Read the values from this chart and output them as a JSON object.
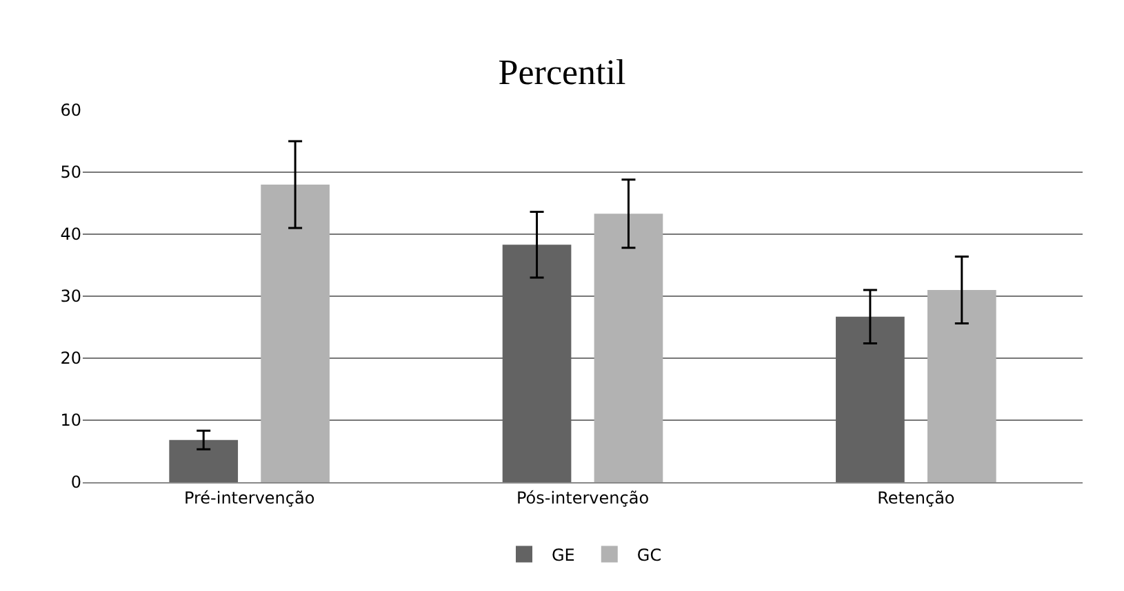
{
  "chart_data": {
    "type": "bar",
    "title": "Percentil",
    "categories": [
      "Pré-intervenção",
      "Pós-intervenção",
      "Retenção"
    ],
    "series": [
      {
        "name": "GE",
        "color": "#636363",
        "values": [
          6.8,
          38.3,
          26.7
        ],
        "errors": [
          1.5,
          5.3,
          4.3
        ]
      },
      {
        "name": "GC",
        "color": "#b2b2b2",
        "values": [
          48,
          43.3,
          31
        ],
        "errors": [
          7,
          5.5,
          5.4
        ]
      }
    ],
    "ylim": [
      0,
      60
    ],
    "yticks": [
      0,
      10,
      20,
      30,
      40,
      50,
      60
    ],
    "grid": "y",
    "legend": "bottom"
  }
}
